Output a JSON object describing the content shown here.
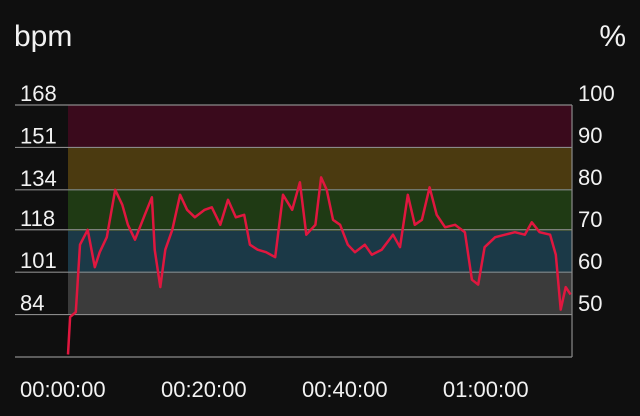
{
  "chart_data": {
    "type": "line",
    "y_label": "bpm",
    "y2_label": "%",
    "x": [
      0,
      0.3,
      1.1,
      1.7,
      2.8,
      3.8,
      4.5,
      5.5,
      6.7,
      7.7,
      8.5,
      9.5,
      10.9,
      11.9,
      12.3,
      13.1,
      13.8,
      14.8,
      15.9,
      16.9,
      18,
      19.4,
      20.4,
      21.6,
      22.7,
      23.8,
      25,
      25.8,
      26.9,
      28.1,
      29.4,
      30.5,
      31.8,
      32.9,
      33.8,
      35.1,
      35.9,
      36.7,
      37.6,
      38.6,
      39.7,
      40.7,
      42.1,
      43.1,
      44.5,
      46.1,
      47.1,
      48.2,
      49.2,
      50.2,
      51.3,
      52.3,
      53.5,
      54.9,
      56.3,
      57.3,
      58.2,
      59.1,
      60.6,
      62,
      63.4,
      64.8,
      65.8,
      66.9,
      68.4,
      69.2,
      69.9,
      70.6,
      71.3
    ],
    "series": [
      {
        "name": "bpm",
        "color": "#e0173f",
        "values": [
          68,
          83,
          85,
          112,
          118,
          103,
          109,
          115,
          134,
          128,
          120,
          114,
          124,
          131,
          110,
          95,
          110,
          118,
          132,
          126,
          123,
          126,
          127,
          120,
          130,
          123,
          124,
          112,
          110,
          109,
          107,
          132,
          126,
          137,
          116,
          120,
          139,
          134,
          122,
          120,
          112,
          109,
          112,
          108,
          110,
          116,
          111,
          132,
          120,
          122,
          135,
          124,
          119,
          120,
          117,
          98,
          96,
          111,
          115,
          116,
          117,
          116,
          121,
          117,
          116,
          108,
          86,
          95,
          92
        ]
      }
    ],
    "xlim": [
      0,
      71.5
    ],
    "xticks": [
      {
        "value": 0,
        "label": "00:00:00"
      },
      {
        "value": 20,
        "label": "00:20:00"
      },
      {
        "value": 40,
        "label": "00:40:00"
      },
      {
        "value": 60,
        "label": "01:00:00"
      }
    ],
    "ylim": [
      67,
      168
    ],
    "yticks": [
      84,
      101,
      118,
      134,
      151,
      168
    ],
    "y2lim": [
      40,
      100
    ],
    "y2ticks": [
      50,
      60,
      70,
      80,
      90,
      100
    ],
    "zones": [
      {
        "from": 50,
        "to": 60,
        "color": "#3b3b3b"
      },
      {
        "from": 60,
        "to": 70,
        "color": "#1b3947"
      },
      {
        "from": 70,
        "to": 80,
        "color": "#1f3a14"
      },
      {
        "from": 80,
        "to": 90,
        "color": "#4b3a10"
      },
      {
        "from": 90,
        "to": 100,
        "color": "#3a0a1c"
      }
    ]
  }
}
